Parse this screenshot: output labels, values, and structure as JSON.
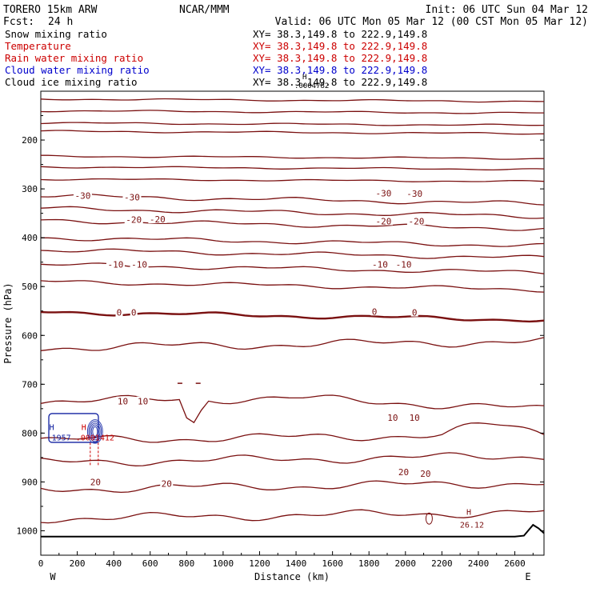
{
  "header": {
    "model": "TORERO  15km ARW",
    "org": "NCAR/MMM",
    "init": "Init: 06 UTC Sun 04 Mar 12",
    "fcst_label": "Fcst:",
    "fcst_value": "24 h",
    "valid": "Valid: 06 UTC Mon 05 Mar 12 (00 CST Mon 05 Mar 12)"
  },
  "legend": [
    {
      "label": "Snow mixing ratio",
      "xy": "XY=  38.3,149.8 to 222.9,149.8",
      "color": "#000000"
    },
    {
      "label": "Temperature",
      "xy": "XY=  38.3,149.8 to 222.9,149.8",
      "color": "#cc0000"
    },
    {
      "label": "Rain water mixing ratio",
      "xy": "XY=  38.3,149.8 to 222.9,149.8",
      "color": "#cc0000"
    },
    {
      "label": "Cloud water mixing ratio",
      "xy": "XY=  38.3,149.8 to 222.9,149.8",
      "color": "#0000cc"
    },
    {
      "label": "Cloud ice mixing ratio",
      "xy": "XY=  38.3,149.8 to 222.9,149.8",
      "color": "#000000"
    }
  ],
  "overprint": {
    "h_top": "H",
    "v_top": ".0004782"
  },
  "chart_data": {
    "type": "contour-cross-section",
    "title": "",
    "xlabel": "Distance (km)",
    "ylabel": "Pressure (hPa)",
    "xlim": [
      0,
      2760
    ],
    "ylim": [
      1050,
      100
    ],
    "x_ticks": [
      0,
      200,
      400,
      600,
      800,
      1000,
      1200,
      1400,
      1600,
      1800,
      2000,
      2200,
      2400,
      2600
    ],
    "y_ticks": [
      200,
      300,
      400,
      500,
      600,
      700,
      800,
      900,
      1000
    ],
    "x_end_labels": {
      "left": "W",
      "right": "E"
    },
    "temperature_contour_interval_C": 5,
    "isotherms": [
      {
        "p": 116,
        "label": ""
      },
      {
        "p": 140,
        "label": ""
      },
      {
        "p": 165,
        "label": ""
      },
      {
        "p": 182,
        "label": ""
      },
      {
        "p": 233,
        "label": ""
      },
      {
        "p": 255,
        "label": ""
      },
      {
        "p": 280,
        "label": ""
      },
      {
        "p": 314,
        "label": "-30"
      },
      {
        "p": 340,
        "label": ""
      },
      {
        "p": 365,
        "label": "-20"
      },
      {
        "p": 400,
        "label": ""
      },
      {
        "p": 425,
        "label": ""
      },
      {
        "p": 455,
        "label": "-10"
      },
      {
        "p": 490,
        "label": ""
      },
      {
        "p": 552,
        "label": "0"
      },
      {
        "p": 625,
        "label": ""
      },
      {
        "p": 735,
        "label": "10"
      },
      {
        "p": 815,
        "label": ""
      },
      {
        "p": 860,
        "label": "20"
      },
      {
        "p": 915,
        "label": "20"
      },
      {
        "p": 975,
        "label": ""
      }
    ],
    "contour_labels": [
      {
        "x": 230,
        "p": 314,
        "text": "-30"
      },
      {
        "x": 500,
        "p": 317,
        "text": "-30"
      },
      {
        "x": 1880,
        "p": 309,
        "text": "-30"
      },
      {
        "x": 2050,
        "p": 310,
        "text": "-30"
      },
      {
        "x": 510,
        "p": 363,
        "text": "-20"
      },
      {
        "x": 640,
        "p": 362,
        "text": "-20"
      },
      {
        "x": 1880,
        "p": 366,
        "text": "-20"
      },
      {
        "x": 2060,
        "p": 366,
        "text": "-20"
      },
      {
        "x": 410,
        "p": 455,
        "text": "-10"
      },
      {
        "x": 540,
        "p": 455,
        "text": "-10"
      },
      {
        "x": 1860,
        "p": 455,
        "text": "-10"
      },
      {
        "x": 1990,
        "p": 455,
        "text": "-10"
      },
      {
        "x": 430,
        "p": 553,
        "text": "0"
      },
      {
        "x": 510,
        "p": 553,
        "text": "0"
      },
      {
        "x": 1830,
        "p": 551,
        "text": "0"
      },
      {
        "x": 2050,
        "p": 553,
        "text": "0"
      },
      {
        "x": 450,
        "p": 735,
        "text": "10"
      },
      {
        "x": 560,
        "p": 735,
        "text": "10"
      },
      {
        "x": 1930,
        "p": 768,
        "text": "10"
      },
      {
        "x": 2050,
        "p": 768,
        "text": "10"
      },
      {
        "x": 1990,
        "p": 880,
        "text": "20"
      },
      {
        "x": 2110,
        "p": 883,
        "text": "20"
      },
      {
        "x": 300,
        "p": 900,
        "text": "20"
      },
      {
        "x": 690,
        "p": 903,
        "text": "20"
      }
    ],
    "cloud_water_max": {
      "marker": "H",
      "value": "1957",
      "x": 60,
      "p": 800
    },
    "rain_water_max": {
      "marker": "H",
      "value": ".0001412",
      "x": 280,
      "p": 800
    },
    "surface_temp_max": {
      "marker": "H",
      "value": "26.12",
      "x": 2400,
      "p": 990
    },
    "terrain_pressure": [
      [
        0,
        1012
      ],
      [
        2600,
        1012
      ],
      [
        2650,
        1010
      ],
      [
        2700,
        988
      ],
      [
        2730,
        995
      ],
      [
        2760,
        1005
      ]
    ]
  }
}
